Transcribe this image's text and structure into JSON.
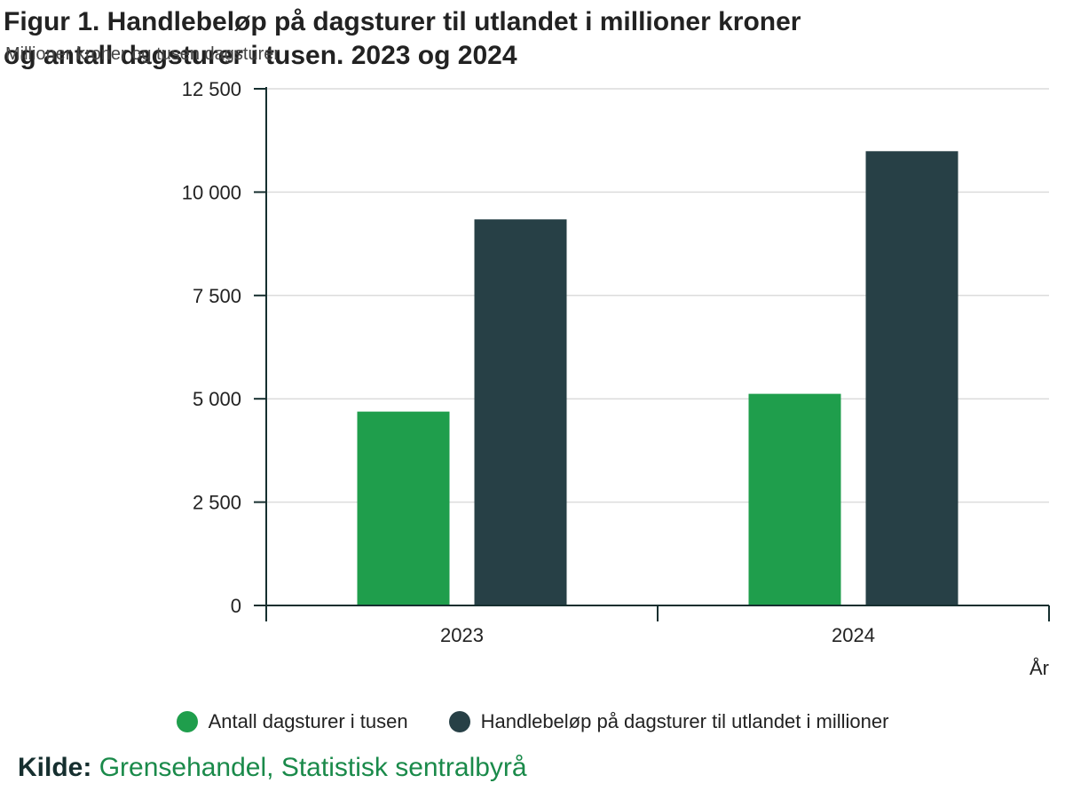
{
  "chart_data": {
    "type": "bar",
    "title": "Figur 1. Handlebeløp på dagsturer til utlandet i millioner kroner og antall dagsturer i tusen. 2023 og 2024",
    "ylabel": "Millioner kroner og tusen dagsturer",
    "xlabel": "År",
    "categories": [
      "2023",
      "2024"
    ],
    "ylim": [
      0,
      12500
    ],
    "yticks": [
      0,
      2500,
      5000,
      7500,
      10000,
      12500
    ],
    "ytick_labels": [
      "0",
      "2 500",
      "5 000",
      "7 500",
      "10 000",
      "12 500"
    ],
    "grid": true,
    "legend_position": "bottom",
    "series": [
      {
        "name": "Antall dagsturer i tusen",
        "color": "#1f9e4c",
        "values": [
          4690,
          5120
        ]
      },
      {
        "name": "Handlebeløp på dagsturer til utlandet i millioner",
        "color": "#274046",
        "values": [
          9340,
          10990
        ]
      }
    ]
  },
  "source": {
    "label": "Kilde:",
    "text": "Grensehandel, Statistisk sentralbyrå"
  }
}
